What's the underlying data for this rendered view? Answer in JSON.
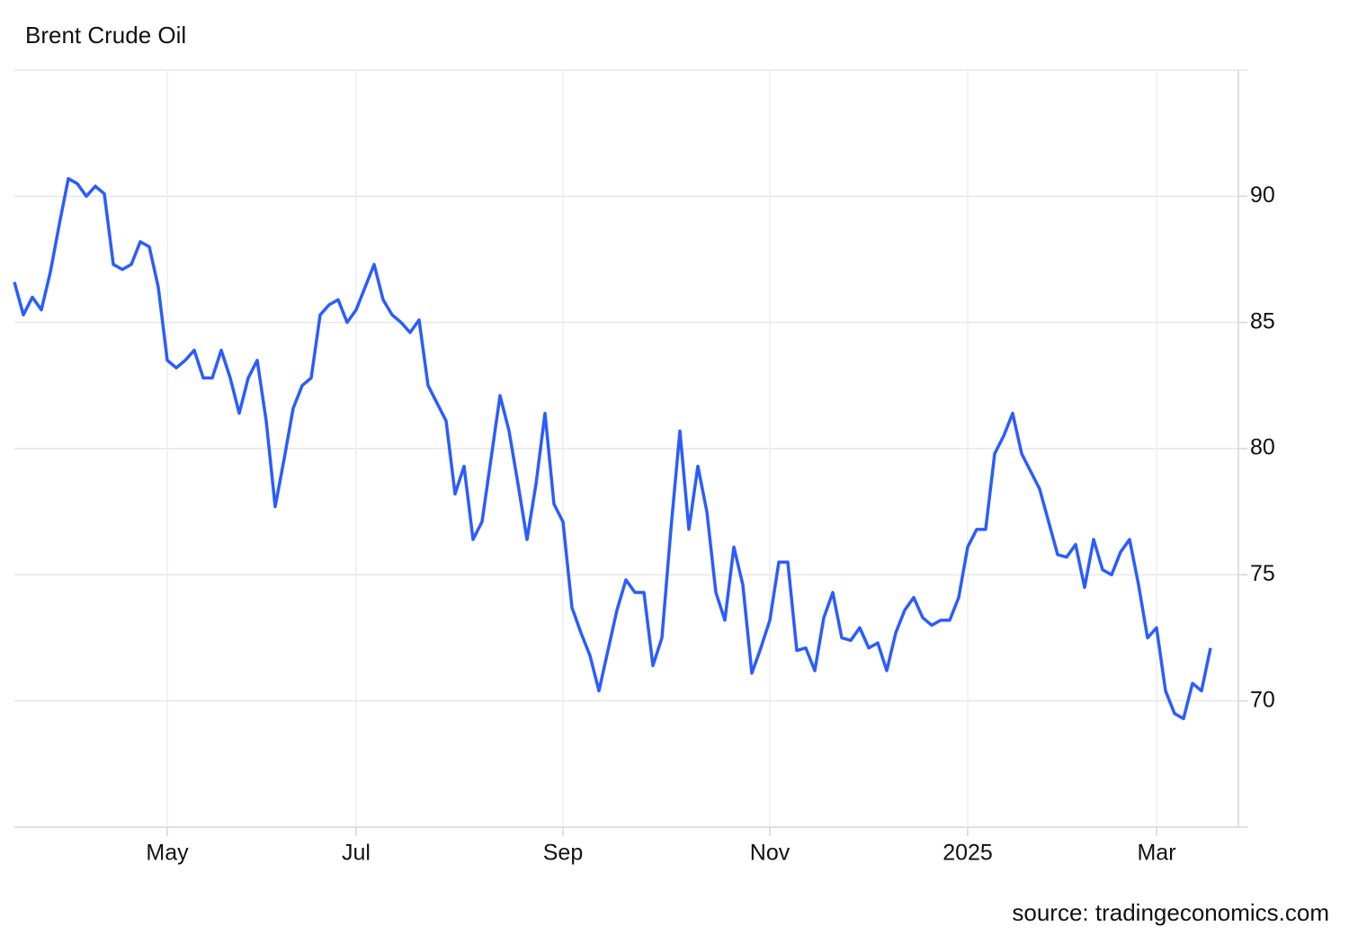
{
  "chart_data": {
    "type": "line",
    "title": "Brent Crude Oil",
    "source": "source: tradingeconomics.com",
    "categories": [
      null,
      null,
      null,
      null,
      null,
      null,
      null,
      null,
      null,
      null,
      null,
      null,
      null,
      null,
      null,
      null,
      null,
      "May",
      null,
      null,
      null,
      null,
      null,
      null,
      null,
      null,
      null,
      null,
      null,
      null,
      null,
      null,
      null,
      null,
      null,
      null,
      null,
      null,
      "Jul",
      null,
      null,
      null,
      null,
      null,
      null,
      null,
      null,
      null,
      null,
      null,
      null,
      null,
      null,
      null,
      null,
      null,
      null,
      null,
      null,
      null,
      null,
      "Sep",
      null,
      null,
      null,
      null,
      null,
      null,
      null,
      null,
      null,
      null,
      null,
      null,
      null,
      null,
      null,
      null,
      null,
      null,
      null,
      null,
      null,
      null,
      "Nov",
      null,
      null,
      null,
      null,
      null,
      null,
      null,
      null,
      null,
      null,
      null,
      null,
      null,
      null,
      null,
      null,
      null,
      null,
      null,
      null,
      null,
      "2025",
      null,
      null,
      null,
      null,
      null,
      null,
      null,
      null,
      null,
      null,
      null,
      null,
      null,
      null,
      null,
      null,
      null,
      null,
      null,
      null,
      "Mar",
      null,
      null,
      null,
      null,
      null,
      null
    ],
    "values": [
      86.6,
      85.3,
      86.0,
      85.5,
      87.0,
      88.9,
      90.7,
      90.5,
      90.0,
      90.4,
      90.1,
      87.3,
      87.1,
      87.3,
      88.2,
      88.0,
      86.4,
      83.5,
      83.2,
      83.5,
      83.9,
      82.8,
      82.8,
      83.9,
      82.8,
      81.4,
      82.8,
      83.5,
      81.1,
      77.7,
      79.6,
      81.6,
      82.5,
      82.8,
      85.3,
      85.7,
      85.9,
      85.0,
      85.5,
      86.4,
      87.3,
      85.9,
      85.3,
      85.0,
      84.6,
      85.1,
      82.5,
      81.8,
      81.1,
      78.2,
      79.3,
      76.4,
      77.1,
      79.6,
      82.1,
      80.7,
      78.6,
      76.4,
      78.6,
      81.4,
      77.8,
      77.1,
      73.7,
      72.7,
      71.8,
      70.4,
      72.0,
      73.6,
      74.8,
      74.3,
      74.3,
      71.4,
      72.5,
      76.8,
      80.7,
      76.8,
      79.3,
      77.5,
      74.3,
      73.2,
      76.1,
      74.6,
      71.1,
      72.1,
      73.2,
      75.5,
      75.5,
      72.0,
      72.1,
      71.2,
      73.3,
      74.3,
      72.5,
      72.4,
      72.9,
      72.1,
      72.3,
      71.2,
      72.7,
      73.6,
      74.1,
      73.3,
      73.0,
      73.2,
      73.2,
      74.1,
      76.1,
      76.8,
      76.8,
      79.8,
      80.5,
      81.4,
      79.8,
      79.1,
      78.4,
      77.1,
      75.8,
      75.7,
      76.2,
      74.5,
      76.4,
      75.2,
      75.0,
      75.9,
      76.4,
      74.6,
      72.5,
      72.9,
      70.4,
      69.5,
      69.3,
      70.7,
      70.4,
      72.1
    ],
    "color": "#2b5cff",
    "ylim": [
      65,
      95
    ],
    "yticks": [
      70,
      75,
      80,
      85,
      90
    ],
    "grid": true
  }
}
